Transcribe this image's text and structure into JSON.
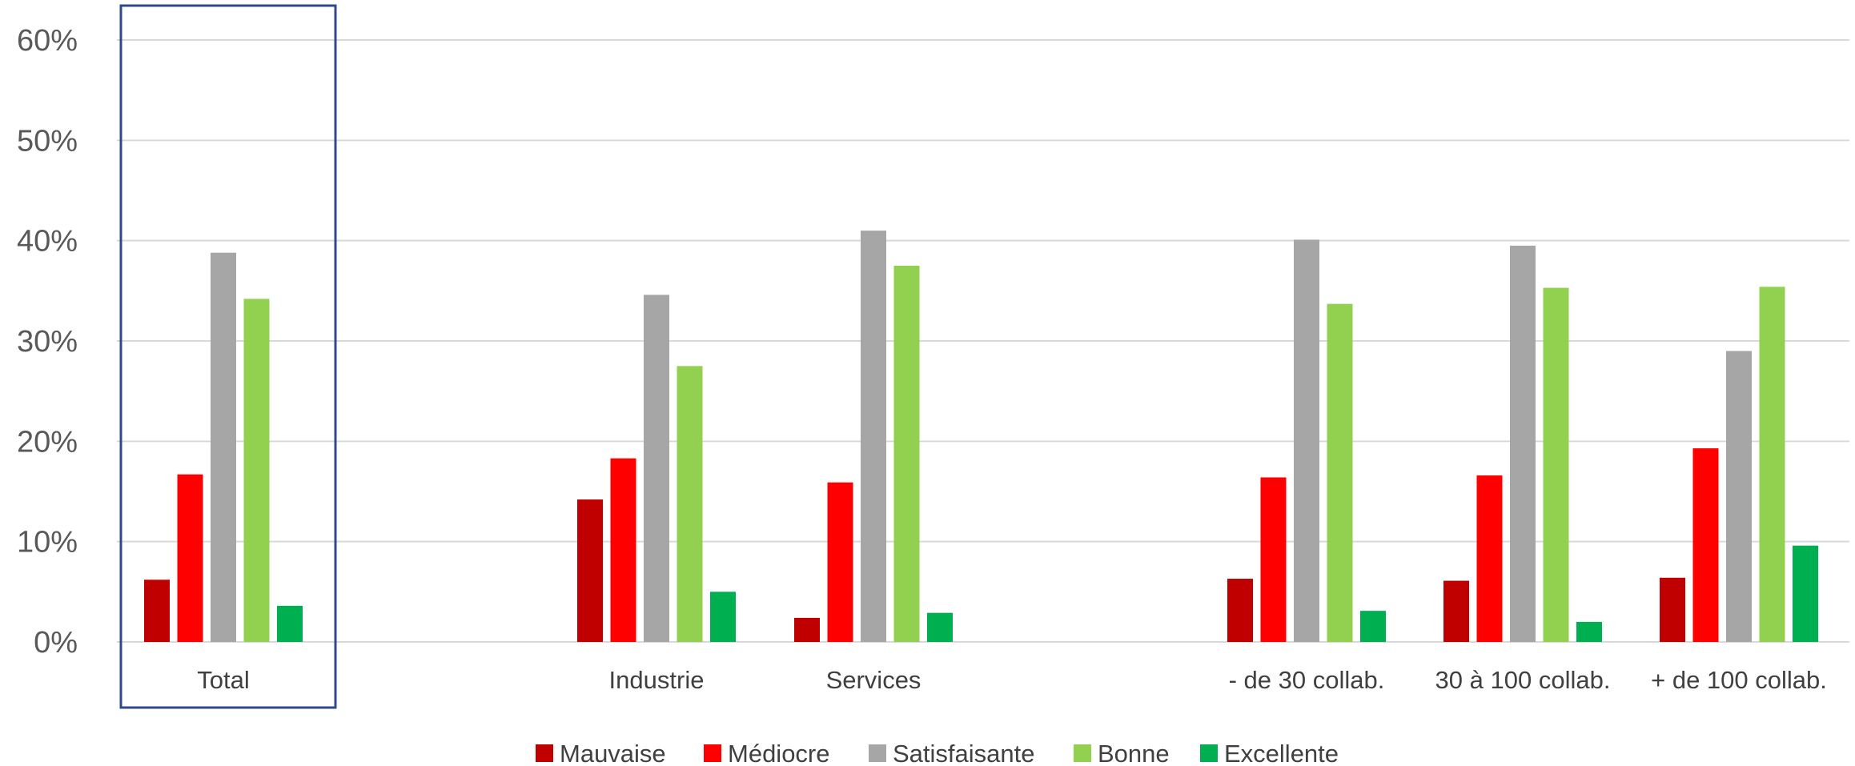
{
  "chart_data": {
    "type": "bar",
    "title": "",
    "xlabel": "",
    "ylabel": "",
    "ylim": [
      0,
      60
    ],
    "yticks": [
      "0%",
      "10%",
      "20%",
      "30%",
      "40%",
      "50%",
      "60%"
    ],
    "grid": true,
    "legend_position": "bottom",
    "highlighted_category": "Total",
    "categories": [
      "Total",
      "Industrie",
      "Services",
      "- de 30 collab.",
      "30 à 100 collab.",
      "+ de 100 collab."
    ],
    "series": [
      {
        "name": "Mauvaise",
        "color": "#c00000",
        "values": [
          6.2,
          14.2,
          2.4,
          6.3,
          6.1,
          6.4
        ]
      },
      {
        "name": "Médiocre",
        "color": "#ff0000",
        "values": [
          16.7,
          18.3,
          15.9,
          16.4,
          16.6,
          19.3
        ]
      },
      {
        "name": "Satisfaisante",
        "color": "#a6a6a6",
        "values": [
          38.8,
          34.6,
          41.0,
          40.1,
          39.5,
          29.0
        ]
      },
      {
        "name": "Bonne",
        "color": "#92d050",
        "values": [
          34.2,
          27.5,
          37.5,
          33.7,
          35.3,
          35.4
        ]
      },
      {
        "name": "Excellente",
        "color": "#00b050",
        "values": [
          3.6,
          5.0,
          2.9,
          3.1,
          2.0,
          9.6
        ]
      }
    ]
  }
}
